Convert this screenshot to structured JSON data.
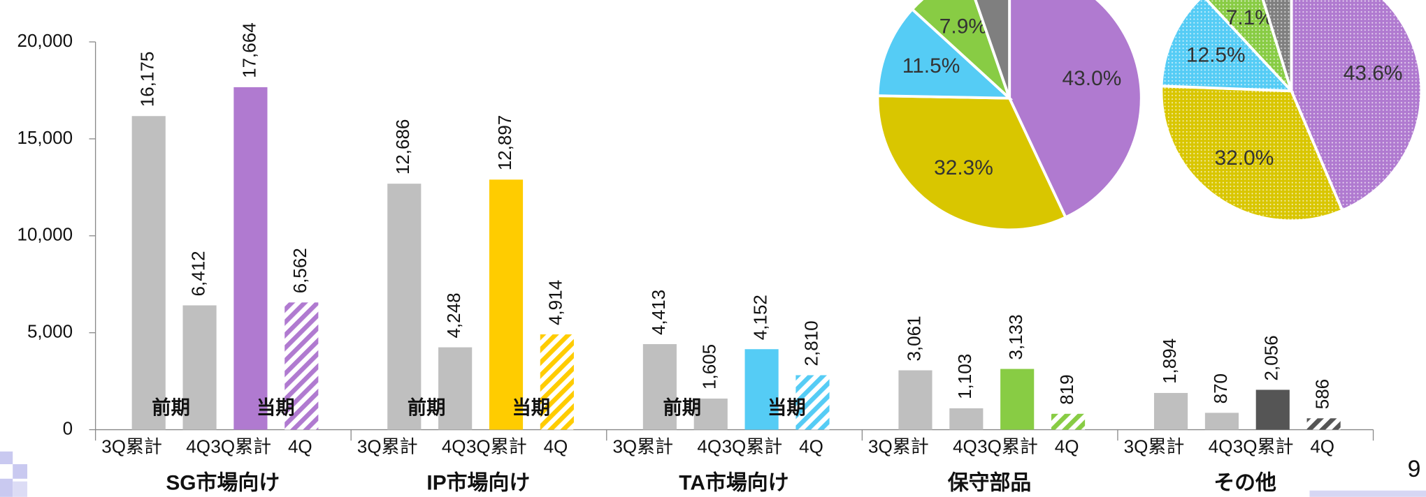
{
  "chart_data": [
    {
      "type": "bar",
      "categories": [
        "SG市場向け",
        "IP市場向け",
        "TA市場向け",
        "保守部品",
        "その他"
      ],
      "series": [
        {
          "name": "3Q累計",
          "period": "前期",
          "color": "#bfbfbf",
          "values": [
            16175,
            12686,
            4413,
            3061,
            1894
          ],
          "value_labels": [
            "16,175",
            "12,686",
            "4,413",
            "3,061",
            "1,894"
          ]
        },
        {
          "name": "4Q",
          "period": "前期",
          "color": "#bfbfbf",
          "values": [
            6412,
            4248,
            1605,
            1103,
            870
          ],
          "value_labels": [
            "6,412",
            "4,248",
            "1,605",
            "1,103",
            "870"
          ]
        },
        {
          "name": "3Q累計",
          "period": "当期",
          "colors": [
            "#b07ad0",
            "#ffcc00",
            "#55ccf5",
            "#88cc44",
            "#555555"
          ],
          "values": [
            17664,
            12897,
            4152,
            3133,
            2056
          ],
          "value_labels": [
            "17,664",
            "12,897",
            "4,152",
            "3,133",
            "2,056"
          ]
        },
        {
          "name": "4Q",
          "period": "当期",
          "colors": [
            "#b07ad0",
            "#ffcc00",
            "#55ccf5",
            "#88cc44",
            "#555555"
          ],
          "hatch": true,
          "values": [
            6562,
            4914,
            2810,
            819,
            586
          ],
          "value_labels": [
            "6,562",
            "4,914",
            "2,810",
            "819",
            "586"
          ]
        }
      ],
      "period_label_categories": [
        0,
        1,
        2
      ],
      "ylim": [
        0,
        20000
      ],
      "yticks": [
        0,
        {
          "value": 5000,
          "label": "5,000"
        },
        {
          "value": 10000,
          "label": "10,000"
        },
        {
          "value": 15000,
          "label": "15,000"
        },
        {
          "value": 20000,
          "label": "20,000"
        }
      ]
    },
    {
      "type": "pie",
      "values": [
        43.0,
        32.3,
        11.5,
        7.9,
        5.3
      ],
      "value_labels": [
        "43.0%",
        "32.3%",
        "11.5%",
        "7.9%",
        null
      ],
      "colors": [
        "#b07ad0",
        "#d9c600",
        "#55ccf5",
        "#88cc44",
        "#7f7f7f"
      ]
    },
    {
      "type": "pie",
      "values": [
        43.6,
        32.0,
        12.5,
        7.1,
        4.8
      ],
      "value_labels": [
        "43.6%",
        "32.0%",
        "12.5%",
        "7.1%",
        null
      ],
      "colors": [
        "#b07ad0",
        "#d9c600",
        "#55ccf5",
        "#88cc44",
        "#7f7f7f"
      ],
      "pattern": "dots"
    }
  ],
  "page_number": "9"
}
